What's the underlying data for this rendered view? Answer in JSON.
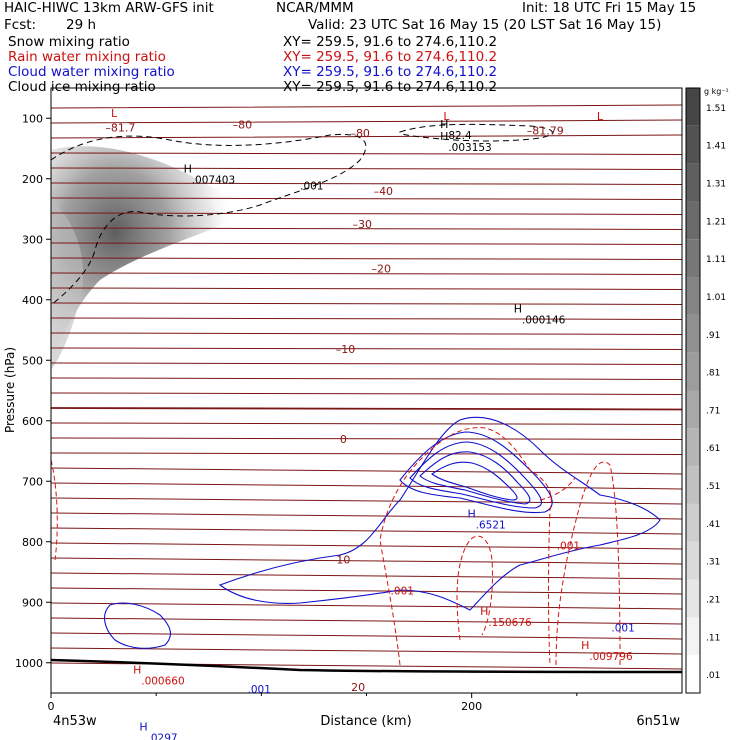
{
  "header": {
    "left_title": "HAIC-HIWC 13km ARW-GFS init",
    "org": "NCAR/MMM",
    "init": "Init: 18 UTC Fri 15 May 15",
    "fcst_label": "Fcst:",
    "fcst_value": "29 h",
    "valid": "Valid: 23 UTC Sat 16 May 15 (20 LST Sat 16 May 15)"
  },
  "fields": [
    {
      "name": "Snow mixing ratio",
      "xy": "XY= 259.5, 91.6 to 274.6,110.2",
      "color": "#000000"
    },
    {
      "name": "Rain water mixing ratio",
      "xy": "XY= 259.5, 91.6 to 274.6,110.2",
      "color": "#cc1111"
    },
    {
      "name": "Cloud water mixing ratio",
      "xy": "XY= 259.5, 91.6 to 274.6,110.2",
      "color": "#1111cc"
    },
    {
      "name": "Cloud ice mixing ratio",
      "xy": "XY= 259.5, 91.6 to 274.6,110.2",
      "color": "#000000"
    }
  ],
  "chart_data": {
    "type": "contour",
    "xlabel": "Distance (km)",
    "ylabel": "Pressure (hPa)",
    "xlim": [
      0,
      300
    ],
    "ylim": [
      1050,
      50
    ],
    "x_ticks": [
      0,
      200
    ],
    "y_ticks": [
      100,
      200,
      300,
      400,
      500,
      600,
      700,
      800,
      900,
      1000
    ],
    "x_endpoints": [
      "4n53w",
      "6n51w"
    ],
    "colorbar": {
      "unit": "g kg⁻¹",
      "levels": [
        ".01",
        ".11",
        ".21",
        ".31",
        ".41",
        ".51",
        ".61",
        ".71",
        ".81",
        ".91",
        "1.01",
        "1.11",
        "1.21",
        "1.31",
        "1.41",
        "1.51"
      ]
    },
    "temperature_contour_labels": [
      {
        "x": 33,
        "p": 122,
        "text": "–81.7"
      },
      {
        "x": 91,
        "p": 117,
        "text": "–80"
      },
      {
        "x": 147,
        "p": 131,
        "text": "–80"
      },
      {
        "x": 158,
        "p": 227,
        "text": "–40"
      },
      {
        "x": 148,
        "p": 281,
        "text": "–30"
      },
      {
        "x": 157,
        "p": 355,
        "text": "–20"
      },
      {
        "x": 140,
        "p": 488,
        "text": "–10"
      },
      {
        "x": 139,
        "p": 637,
        "text": "0"
      },
      {
        "x": 139,
        "p": 836,
        "text": "10"
      },
      {
        "x": 146,
        "p": 1047,
        "text": "20"
      },
      {
        "x": 235,
        "p": 127,
        "text": "–81.79"
      }
    ],
    "extrema": [
      {
        "type": "L",
        "x": 30,
        "p": 98,
        "color": "#cc1111"
      },
      {
        "type": "L",
        "x": 188,
        "p": 103,
        "color": "#cc1111"
      },
      {
        "type": "L",
        "x": 261,
        "p": 103,
        "color": "#cc1111"
      },
      {
        "type": "H",
        "x": 187,
        "p": 116,
        "label": "82.4",
        "color": "#000000"
      },
      {
        "type": "H",
        "x": 187,
        "p": 136,
        "label": ".003153",
        "color": "#000000"
      },
      {
        "type": "H",
        "x": 65,
        "p": 190,
        "label": ".007403",
        "color": "#000000"
      },
      {
        "type": "H",
        "x": 222,
        "p": 421,
        "label": ".000146",
        "color": "#000000"
      },
      {
        "type": "H",
        "x": 200,
        "p": 760,
        "label": ".6521",
        "color": "#1111cc"
      },
      {
        "type": "H",
        "x": 206,
        "p": 921,
        "label": ".150676",
        "color": "#cc1111"
      },
      {
        "type": "H",
        "x": 254,
        "p": 977,
        "label": ".009796",
        "color": "#cc1111"
      },
      {
        "type": "H",
        "x": 41,
        "p": 1018,
        "label": ".000660",
        "color": "#cc1111"
      },
      {
        "type": "H",
        "x": 44,
        "p": 1112,
        "label": ".0297",
        "color": "#1111cc"
      }
    ],
    "contour_value_labels": [
      {
        "x": 124,
        "p": 218,
        "text": ".001",
        "color": "#000000"
      },
      {
        "x": 246,
        "p": 813,
        "text": ".001",
        "color": "#cc1111"
      },
      {
        "x": 167,
        "p": 887,
        "text": ".001",
        "color": "#cc1111"
      },
      {
        "x": 272,
        "p": 948,
        "text": ".001",
        "color": "#1111cc"
      },
      {
        "x": 99,
        "p": 1050,
        "text": ".001",
        "color": "#1111cc"
      }
    ]
  }
}
